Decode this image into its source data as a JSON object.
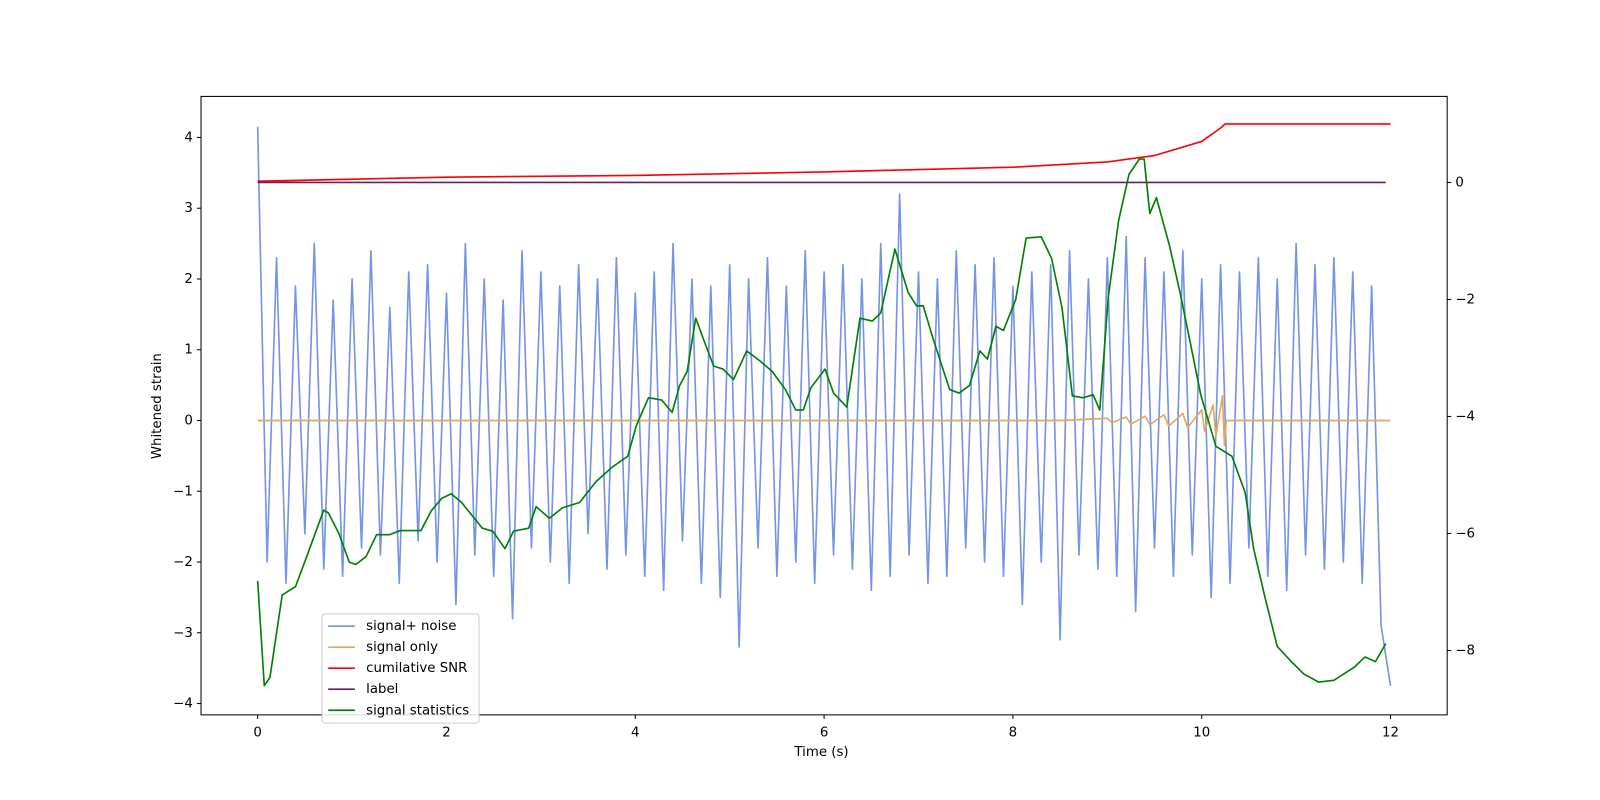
{
  "chart_data": {
    "type": "line",
    "xlabel": "Time (s)",
    "ylabel": "Whitened strain",
    "xlim": [
      -0.6,
      12.6
    ],
    "ylim": [
      -4.16,
      4.58
    ],
    "y2lim": [
      -9.1,
      1.47
    ],
    "xticks": [
      0,
      2,
      4,
      6,
      8,
      10,
      12
    ],
    "yticks": [
      {
        "value": -4,
        "label": "−4"
      },
      {
        "value": -3,
        "label": "−3"
      },
      {
        "value": -2,
        "label": "−2"
      },
      {
        "value": -1,
        "label": "−1"
      },
      0,
      1,
      2,
      3,
      4
    ],
    "y2ticks": [
      {
        "value": -8,
        "label": "−8"
      },
      {
        "value": -6,
        "label": "−6"
      },
      {
        "value": -4,
        "label": "−4"
      },
      {
        "value": -2,
        "label": "−2"
      },
      0
    ],
    "legend": "lower left",
    "series": [
      {
        "name": "signal+ noise",
        "color": "#7594e8",
        "x": [
          0,
          0.1,
          0.2,
          0.3,
          0.4,
          0.5,
          0.6,
          0.7,
          0.8,
          0.9,
          1,
          1.1,
          1.2,
          1.3,
          1.4,
          1.5,
          1.6,
          1.7,
          1.8,
          1.9,
          2,
          2.1,
          2.2,
          2.3,
          2.4,
          2.5,
          2.6,
          2.7,
          2.8,
          2.9,
          3,
          3.1,
          3.2,
          3.3,
          3.4,
          3.5,
          3.6,
          3.7,
          3.8,
          3.9,
          4,
          4.1,
          4.2,
          4.3,
          4.4,
          4.5,
          4.6,
          4.7,
          4.8,
          4.9,
          5,
          5.1,
          5.2,
          5.3,
          5.4,
          5.5,
          5.6,
          5.7,
          5.8,
          5.9,
          6,
          6.1,
          6.2,
          6.3,
          6.4,
          6.5,
          6.6,
          6.7,
          6.8,
          6.9,
          7,
          7.1,
          7.2,
          7.3,
          7.4,
          7.5,
          7.6,
          7.7,
          7.8,
          7.9,
          8,
          8.1,
          8.2,
          8.3,
          8.4,
          8.5,
          8.6,
          8.7,
          8.8,
          8.9,
          9,
          9.1,
          9.2,
          9.3,
          9.4,
          9.5,
          9.6,
          9.7,
          9.8,
          9.9,
          10,
          10.1,
          10.2,
          10.3,
          10.4,
          10.5,
          10.6,
          10.7,
          10.8,
          10.9,
          11,
          11.1,
          11.2,
          11.3,
          11.4,
          11.5,
          11.6,
          11.7,
          11.8,
          11.9,
          12
        ],
        "values": [
          4.15,
          -2.0,
          2.3,
          -2.3,
          1.9,
          -1.6,
          2.5,
          -2.1,
          1.7,
          -2.2,
          2.0,
          -1.8,
          2.4,
          -1.9,
          1.6,
          -2.3,
          2.1,
          -1.7,
          2.2,
          -2.0,
          1.8,
          -2.6,
          2.5,
          -1.9,
          2.0,
          -2.2,
          1.7,
          -2.8,
          2.4,
          -1.8,
          2.1,
          -2.0,
          1.9,
          -2.3,
          2.2,
          -1.6,
          2.0,
          -2.1,
          2.3,
          -1.9,
          1.8,
          -2.2,
          2.1,
          -2.4,
          2.5,
          -1.7,
          2.0,
          -2.3,
          1.9,
          -2.5,
          2.2,
          -3.2,
          2.0,
          -1.8,
          2.3,
          -2.2,
          1.9,
          -2.0,
          2.4,
          -2.3,
          2.1,
          -1.9,
          2.2,
          -2.1,
          2.0,
          -2.4,
          2.5,
          -2.2,
          3.2,
          -1.9,
          2.1,
          -2.3,
          2.0,
          -2.2,
          2.4,
          -1.8,
          2.2,
          -2.0,
          2.3,
          -2.2,
          1.9,
          -2.6,
          2.1,
          -2.0,
          2.2,
          -3.1,
          2.4,
          -1.9,
          2.0,
          -2.1,
          2.3,
          -2.2,
          2.6,
          -2.7,
          2.3,
          -1.8,
          2.1,
          -2.2,
          2.4,
          -1.9,
          2.0,
          -2.5,
          2.2,
          -2.3,
          2.1,
          -1.8,
          2.3,
          -2.2,
          2.0,
          -2.4,
          2.5,
          -1.9,
          2.2,
          -2.1,
          2.3,
          -2.0,
          2.1,
          -2.3,
          1.9,
          -2.9,
          -3.75
        ]
      },
      {
        "name": "signal only",
        "color": "#e0a860",
        "x": [
          0,
          8.5,
          9.0,
          9.05,
          9.2,
          9.25,
          9.4,
          9.45,
          9.6,
          9.65,
          9.8,
          9.85,
          10.0,
          10.03,
          10.12,
          10.15,
          10.22,
          10.24,
          10.26,
          12
        ],
        "values": [
          0,
          0,
          0.03,
          -0.03,
          0.05,
          -0.05,
          0.06,
          -0.06,
          0.08,
          -0.08,
          0.1,
          -0.1,
          0.15,
          -0.15,
          0.22,
          -0.22,
          0.35,
          -0.35,
          0,
          0
        ]
      },
      {
        "name": "cumilative SNR",
        "color": "#ff0000",
        "axis": "y2",
        "x": [
          0,
          2,
          4,
          6,
          8,
          9,
          9.5,
          10,
          10.2,
          10.25,
          12
        ],
        "values": [
          0.02,
          0.09,
          0.12,
          0.18,
          0.26,
          0.35,
          0.46,
          0.7,
          0.93,
          1.0,
          1.0
        ]
      },
      {
        "name": "label",
        "color": "#6a1b6a",
        "axis": "y2",
        "x": [
          0,
          11.95
        ],
        "values": [
          0,
          0
        ]
      },
      {
        "name": "signal statistics",
        "color": "#008000",
        "axis": "y2",
        "x": [
          0,
          0.07,
          0.13,
          0.26,
          0.4,
          0.53,
          0.7,
          0.75,
          0.86,
          0.97,
          1.04,
          1.15,
          1.26,
          1.4,
          1.51,
          1.73,
          1.84,
          1.95,
          2.05,
          2.16,
          2.38,
          2.49,
          2.62,
          2.71,
          2.87,
          2.95,
          3.09,
          3.23,
          3.41,
          3.58,
          3.76,
          3.92,
          4.01,
          4.14,
          4.28,
          4.39,
          4.47,
          4.55,
          4.64,
          4.72,
          4.83,
          4.93,
          5.04,
          5.18,
          5.32,
          5.45,
          5.59,
          5.7,
          5.78,
          5.86,
          6.01,
          6.1,
          6.24,
          6.38,
          6.51,
          6.6,
          6.75,
          6.89,
          6.98,
          7.05,
          7.16,
          7.33,
          7.43,
          7.54,
          7.65,
          7.73,
          7.82,
          7.9,
          8.03,
          8.14,
          8.3,
          8.41,
          8.52,
          8.63,
          8.74,
          8.85,
          8.92,
          9.01,
          9.12,
          9.23,
          9.34,
          9.39,
          9.45,
          9.52,
          9.66,
          9.77,
          9.88,
          9.99,
          10.15,
          10.32,
          10.46,
          10.55,
          10.67,
          10.8,
          10.95,
          11.08,
          11.24,
          11.4,
          11.62,
          11.73,
          11.84,
          11.95
        ],
        "values": [
          -6.81,
          -8.6,
          -8.46,
          -7.05,
          -6.91,
          -6.35,
          -5.6,
          -5.65,
          -6.0,
          -6.49,
          -6.53,
          -6.39,
          -6.02,
          -6.02,
          -5.95,
          -5.95,
          -5.61,
          -5.4,
          -5.32,
          -5.47,
          -5.91,
          -5.96,
          -6.26,
          -5.96,
          -5.91,
          -5.54,
          -5.74,
          -5.56,
          -5.47,
          -5.12,
          -4.86,
          -4.68,
          -4.16,
          -3.68,
          -3.72,
          -3.93,
          -3.47,
          -3.23,
          -2.32,
          -2.67,
          -3.14,
          -3.19,
          -3.37,
          -2.88,
          -3.05,
          -3.23,
          -3.54,
          -3.89,
          -3.89,
          -3.51,
          -3.19,
          -3.6,
          -3.84,
          -2.32,
          -2.37,
          -2.23,
          -1.14,
          -1.88,
          -2.11,
          -2.11,
          -2.7,
          -3.54,
          -3.6,
          -3.47,
          -2.88,
          -3.02,
          -2.46,
          -2.53,
          -2.0,
          -0.95,
          -0.93,
          -1.3,
          -2.14,
          -3.65,
          -3.68,
          -3.63,
          -3.89,
          -1.96,
          -0.65,
          0.14,
          0.4,
          0.4,
          -0.53,
          -0.26,
          -1.09,
          -1.88,
          -2.75,
          -3.63,
          -4.51,
          -4.68,
          -5.3,
          -6.26,
          -7.09,
          -7.93,
          -8.19,
          -8.4,
          -8.54,
          -8.51,
          -8.28,
          -8.11,
          -8.19,
          -7.88
        ]
      }
    ]
  }
}
